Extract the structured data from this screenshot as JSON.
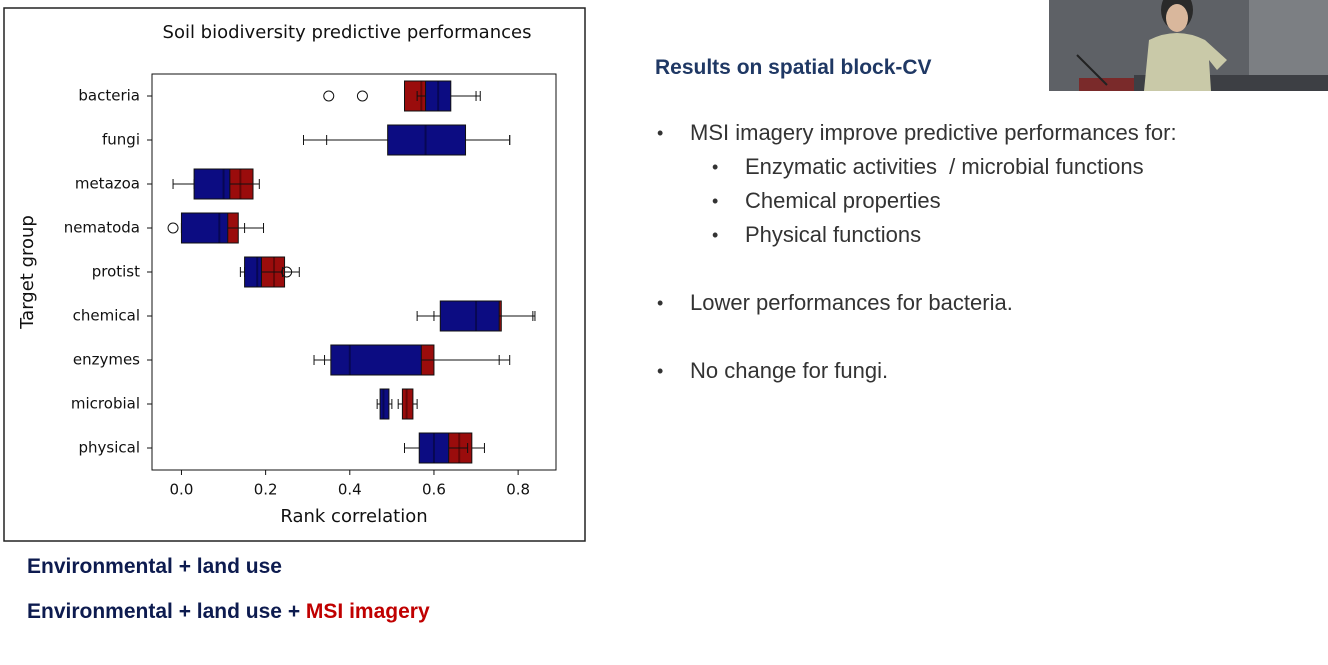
{
  "chart_data": {
    "type": "box",
    "title": "Soil biodiversity predictive performances",
    "xlabel": "Rank correlation",
    "ylabel": "Target group",
    "categories": [
      "bacteria",
      "fungi",
      "metazoa",
      "nematoda",
      "protist",
      "chemical",
      "enzymes",
      "microbial",
      "physical"
    ],
    "xlim": [
      -0.07,
      0.89
    ],
    "xticks": [
      {
        "value": 0,
        "label": "0.0"
      },
      0.2,
      0.4,
      0.6,
      0.8
    ],
    "series": [
      {
        "color": "#9a0c0c",
        "boxes": [
          {
            "low": 0.53,
            "q1": 0.53,
            "median": 0.57,
            "q3": 0.6,
            "high": 0.71,
            "outliers": [
              0.35,
              0.43
            ]
          },
          {
            "low": 0.345,
            "q1": 0.5,
            "median": 0.57,
            "q3": 0.66,
            "high": 0.78,
            "outliers": []
          },
          {
            "low": 0.03,
            "q1": 0.11,
            "median": 0.14,
            "q3": 0.17,
            "high": 0.185,
            "outliers": []
          },
          {
            "low": 0.0,
            "q1": 0.03,
            "median": 0.1,
            "q3": 0.135,
            "high": 0.195,
            "outliers": []
          },
          {
            "low": 0.15,
            "q1": 0.19,
            "median": 0.22,
            "q3": 0.245,
            "high": 0.28,
            "outliers": []
          },
          {
            "low": 0.6,
            "q1": 0.63,
            "median": 0.72,
            "q3": 0.76,
            "high": 0.84,
            "outliers": []
          },
          {
            "low": 0.34,
            "q1": 0.4,
            "median": 0.52,
            "q3": 0.6,
            "high": 0.78,
            "outliers": []
          },
          {
            "low": 0.515,
            "q1": 0.525,
            "median": 0.535,
            "q3": 0.55,
            "high": 0.56,
            "outliers": []
          },
          {
            "low": 0.58,
            "q1": 0.63,
            "median": 0.66,
            "q3": 0.69,
            "high": 0.72,
            "outliers": []
          }
        ]
      },
      {
        "color": "#0c0c82",
        "boxes": [
          {
            "low": 0.56,
            "q1": 0.58,
            "median": 0.61,
            "q3": 0.64,
            "high": 0.7,
            "outliers": []
          },
          {
            "low": 0.29,
            "q1": 0.49,
            "median": 0.58,
            "q3": 0.675,
            "high": 0.78,
            "outliers": []
          },
          {
            "low": -0.02,
            "q1": 0.03,
            "median": 0.1,
            "q3": 0.115,
            "high": 0.17,
            "outliers": []
          },
          {
            "low": 0.0,
            "q1": 0.0,
            "median": 0.09,
            "q3": 0.11,
            "high": 0.15,
            "outliers": [
              -0.02
            ]
          },
          {
            "low": 0.14,
            "q1": 0.15,
            "median": 0.18,
            "q3": 0.19,
            "high": 0.24,
            "outliers": [
              0.25
            ]
          },
          {
            "low": 0.56,
            "q1": 0.615,
            "median": 0.7,
            "q3": 0.755,
            "high": 0.835,
            "outliers": []
          },
          {
            "low": 0.315,
            "q1": 0.355,
            "median": 0.4,
            "q3": 0.57,
            "high": 0.755,
            "outliers": []
          },
          {
            "low": 0.465,
            "q1": 0.472,
            "median": 0.48,
            "q3": 0.493,
            "high": 0.5,
            "outliers": []
          },
          {
            "low": 0.53,
            "q1": 0.565,
            "median": 0.6,
            "q3": 0.635,
            "high": 0.68,
            "outliers": []
          }
        ]
      }
    ]
  },
  "slide": {
    "heading": "Results on spatial block-CV",
    "bullets": [
      {
        "text": "MSI imagery improve predictive performances for:",
        "sub": [
          "Enzymatic activities  / microbial functions",
          "Chemical properties",
          "Physical functions"
        ]
      },
      {
        "text": "Lower performances for bacteria."
      },
      {
        "text": "No change for fungi."
      }
    ],
    "legend": [
      [
        "Environmental + land use"
      ],
      [
        "Environmental + land use + ",
        "MSI imagery"
      ]
    ]
  }
}
